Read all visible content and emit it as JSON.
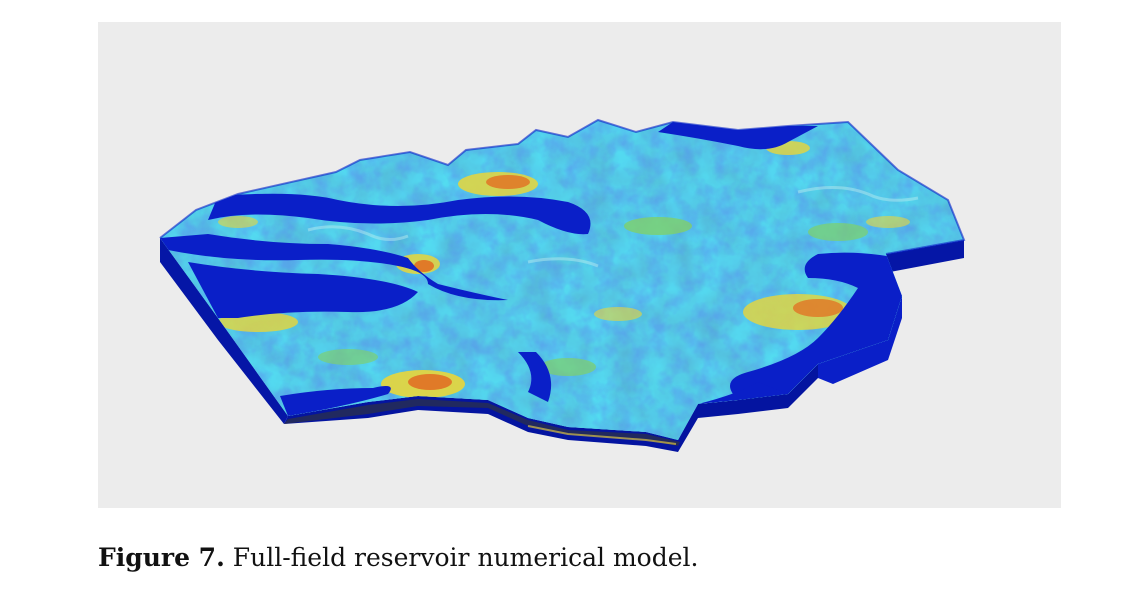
{
  "figure": {
    "caption_label": "Figure 7.",
    "caption_text": "Full-field reservoir numerical model.",
    "colors": {
      "background": "#ececec",
      "base": "#0a1fc8",
      "side": "#0516a6",
      "cyan": "#2fb6c2",
      "mid_blue": "#1f6fd6",
      "green": "#7fd06a",
      "yellow": "#e9d63a",
      "orange": "#e07a28"
    }
  }
}
